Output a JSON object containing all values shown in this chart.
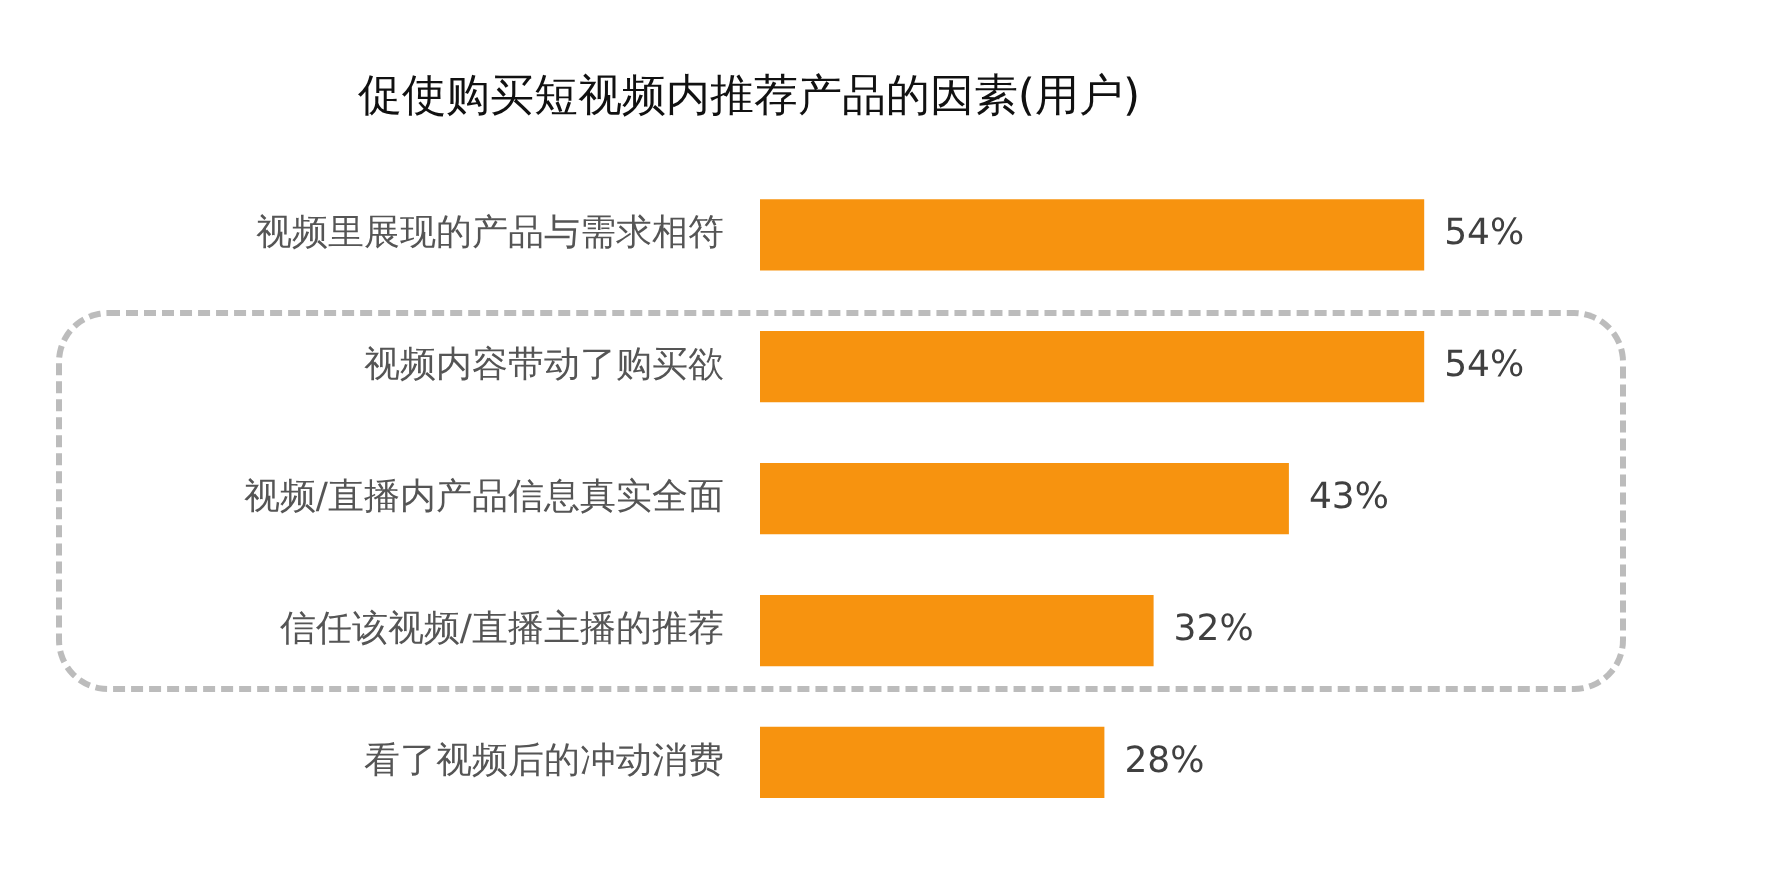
{
  "chart_data": {
    "type": "bar",
    "orientation": "horizontal",
    "title": "促使购买短视频内推荐产品的因素(用户)",
    "categories": [
      "视频里展现的产品与需求相符",
      "视频内容带动了购买欲",
      "视频/直播内产品信息真实全面",
      "信任该视频/直播主播的推荐",
      "看了视频后的冲动消费"
    ],
    "values": [
      54,
      54,
      43,
      32,
      28
    ],
    "value_labels": [
      "54%",
      "54%",
      "43%",
      "32%",
      "28%"
    ],
    "color": "#f7930f",
    "grid": false,
    "legend": false
  }
}
